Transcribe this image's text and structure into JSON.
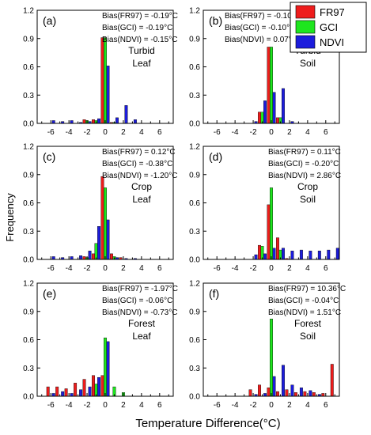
{
  "chart_data": {
    "type": "bar",
    "xlabel": "Temperature Difference(°C)",
    "ylabel": "Frequency",
    "xlim": [
      -7.5,
      7.5
    ],
    "ylim": [
      0,
      1.2
    ],
    "xticks": [
      -6,
      -4,
      -2,
      0,
      2,
      4,
      6
    ],
    "yticks": [
      0.0,
      0.3,
      0.6,
      0.9,
      1.2
    ],
    "legend": {
      "position": "top-right",
      "entries": [
        "FR97",
        "GCI",
        "NDVI"
      ]
    },
    "colors": {
      "FR97": "#ee1c1c",
      "GCI": "#1ee61e",
      "NDVI": "#1c1cdc"
    },
    "panels": [
      {
        "id": "(a)",
        "surface": "Turbid",
        "cover": "Leaf",
        "bias": [
          "Bias(FR97) = -0.19°C",
          "Bias(GCI) = -0.19°C",
          "Bias(NDVI) = -0.15°C"
        ],
        "series": [
          {
            "name": "FR97",
            "x": [
              -2,
              -1,
              0,
              1
            ],
            "y": [
              0.04,
              0.04,
              0.91,
              0.01
            ]
          },
          {
            "name": "GCI",
            "x": [
              -2,
              -1,
              0,
              1
            ],
            "y": [
              0.03,
              0.03,
              0.91,
              0.01
            ]
          },
          {
            "name": "NDVI",
            "x": [
              -6,
              -5,
              -4,
              -3,
              -2,
              -1,
              0,
              1,
              2,
              3
            ],
            "y": [
              0.03,
              0.02,
              0.03,
              0.01,
              0.02,
              0.05,
              0.61,
              0.06,
              0.19,
              0.04
            ]
          }
        ]
      },
      {
        "id": "(b)",
        "surface": "Turbid",
        "cover": "Soil",
        "bias": [
          "Bias(FR97) = -0.10°C",
          "Bias(GCI) = -0.10°C",
          "Bias(NDVI) = 0.07°C"
        ],
        "series": [
          {
            "name": "FR97",
            "x": [
              -1,
              0,
              1
            ],
            "y": [
              0.12,
              0.81,
              0.06
            ]
          },
          {
            "name": "GCI",
            "x": [
              -1,
              0,
              1
            ],
            "y": [
              0.12,
              0.81,
              0.06
            ]
          },
          {
            "name": "NDVI",
            "x": [
              -2,
              -1,
              0,
              1,
              2
            ],
            "y": [
              0.02,
              0.24,
              0.33,
              0.37,
              0.02
            ]
          }
        ]
      },
      {
        "id": "(c)",
        "surface": "Crop",
        "cover": "Leaf",
        "bias": [
          "Bias(FR97) = 0.12°C",
          "Bias(GCI) = -0.38°C",
          "Bias(NDVI) = -1.20°C"
        ],
        "series": [
          {
            "name": "FR97",
            "x": [
              -2,
              -1,
              0,
              1,
              2
            ],
            "y": [
              0.03,
              0.06,
              0.88,
              0.06,
              0.02
            ]
          },
          {
            "name": "GCI",
            "x": [
              -2,
              -1,
              0,
              1
            ],
            "y": [
              0.02,
              0.17,
              0.76,
              0.03
            ]
          },
          {
            "name": "NDVI",
            "x": [
              -6,
              -5,
              -4,
              -3,
              -2,
              -1,
              0,
              1,
              2,
              3
            ],
            "y": [
              0.03,
              0.02,
              0.03,
              0.04,
              0.09,
              0.35,
              0.42,
              0.02,
              0.01,
              0.01
            ]
          }
        ]
      },
      {
        "id": "(d)",
        "surface": "Crop",
        "cover": "Soil",
        "bias": [
          "Bias(FR97) = 0.11°C",
          "Bias(GCI) = -0.20°C",
          "Bias(NDVI) = 2.86°C"
        ],
        "series": [
          {
            "name": "FR97",
            "x": [
              -1,
              0,
              1,
              2
            ],
            "y": [
              0.15,
              0.58,
              0.23,
              0.01
            ]
          },
          {
            "name": "GCI",
            "x": [
              -1,
              0,
              1
            ],
            "y": [
              0.14,
              0.76,
              0.1
            ]
          },
          {
            "name": "NDVI",
            "x": [
              -2,
              -1,
              0,
              1,
              2,
              3,
              4,
              5,
              6,
              7
            ],
            "y": [
              0.05,
              0.06,
              0.12,
              0.12,
              0.09,
              0.1,
              0.09,
              0.09,
              0.1,
              0.12
            ]
          }
        ]
      },
      {
        "id": "(e)",
        "surface": "Forest",
        "cover": "Leaf",
        "bias": [
          "Bias(FR97) = -1.97°C",
          "Bias(GCI) = -0.06°C",
          "Bias(NDVI) = -0.73°C"
        ],
        "series": [
          {
            "name": "FR97",
            "x": [
              -6,
              -5,
              -4,
              -3,
              -2,
              -1,
              0
            ],
            "y": [
              0.1,
              0.1,
              0.08,
              0.14,
              0.18,
              0.22,
              0.22
            ]
          },
          {
            "name": "GCI",
            "x": [
              -1,
              0,
              1,
              2
            ],
            "y": [
              0.13,
              0.62,
              0.1,
              0.04
            ]
          },
          {
            "name": "NDVI",
            "x": [
              -6,
              -5,
              -4,
              -3,
              -2,
              -1,
              0
            ],
            "y": [
              0.03,
              0.05,
              0.03,
              0.07,
              0.1,
              0.2,
              0.58
            ]
          }
        ]
      },
      {
        "id": "(f)",
        "surface": "Forest",
        "cover": "Soil",
        "bias": [
          "Bias(FR97) = 10.36°C",
          "Bias(GCI) = -0.04°C",
          "Bias(NDVI) = 1.51°C"
        ],
        "series": [
          {
            "name": "FR97",
            "x": [
              -2,
              -1,
              0,
              1,
              2,
              3,
              4,
              5,
              6,
              7
            ],
            "y": [
              0.07,
              0.12,
              0.09,
              0.05,
              0.07,
              0.04,
              0.05,
              0.04,
              0.03,
              0.34
            ]
          },
          {
            "name": "GCI",
            "x": [
              0
            ],
            "y": [
              0.82
            ]
          },
          {
            "name": "NDVI",
            "x": [
              -2,
              -1,
              0,
              1,
              2,
              3,
              4,
              5
            ],
            "y": [
              0.02,
              0.03,
              0.21,
              0.33,
              0.12,
              0.09,
              0.06,
              0.02
            ]
          }
        ]
      }
    ]
  }
}
